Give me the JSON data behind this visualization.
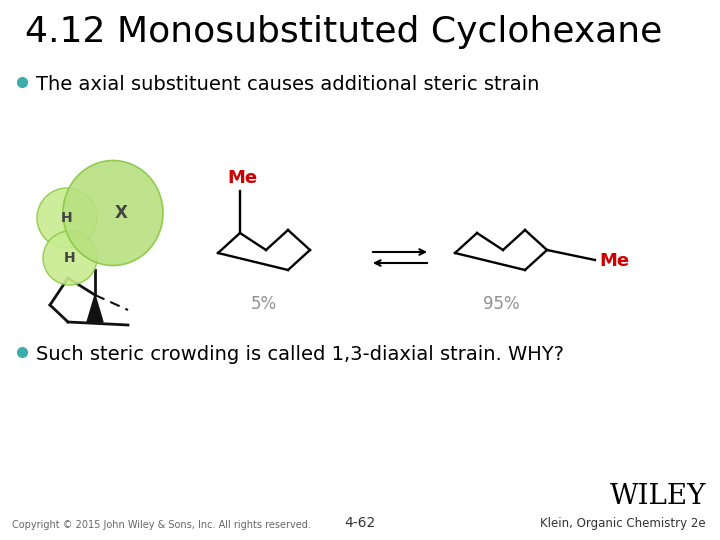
{
  "title": "4.12 Monosubstituted Cyclohexane",
  "bullet1": "The axial substituent causes additional steric strain",
  "bullet2": "Such steric crowding is called 1,3-diaxial strain. WHY?",
  "label_5pct": "5%",
  "label_95pct": "95%",
  "label_me1": "Me",
  "label_me2": "Me",
  "copyright": "Copyright © 2015 John Wiley & Sons, Inc. All rights reserved.",
  "page_num": "4-62",
  "publisher": "WILEY",
  "book": "Klein, Organic Chemistry 2e",
  "bg_color": "#ffffff",
  "title_color": "#000000",
  "bullet_color": "#000000",
  "me_color": "#cc0000",
  "pct_color": "#909090",
  "bullet_dot_color": "#3aacac",
  "line_color": "#000000",
  "sphere_big_face": "#b8e080",
  "sphere_big_edge": "#88c840",
  "sphere_small_face": "#c8ec90",
  "sphere_small_edge": "#88c840",
  "stick_color": "#111111",
  "footer_color": "#666666",
  "wiley_color": "#000000"
}
